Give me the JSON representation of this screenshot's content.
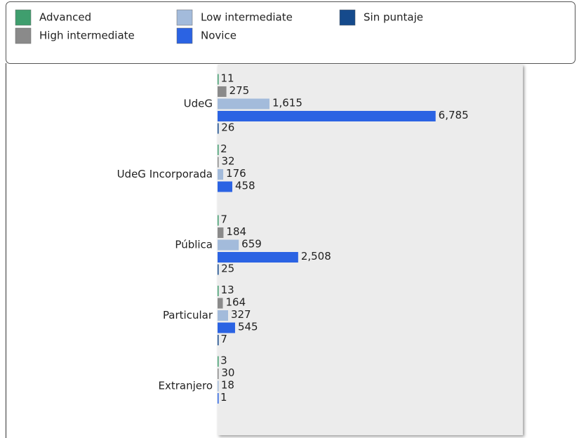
{
  "chart_data": {
    "type": "bar",
    "orientation": "horizontal",
    "categories": [
      "UdeG",
      "UdeG Incorporada",
      "Pública",
      "Particular",
      "Extranjero"
    ],
    "series": [
      {
        "name": "Advanced",
        "color": "#3f9e6e",
        "values": [
          11,
          2,
          7,
          13,
          3
        ]
      },
      {
        "name": "High intermediate",
        "color": "#8a8a8a",
        "values": [
          275,
          32,
          184,
          164,
          30
        ]
      },
      {
        "name": "Low intermediate",
        "color": "#a3bbdb",
        "values": [
          1615,
          176,
          659,
          327,
          18
        ],
        "value_labels": [
          "1,615",
          "176",
          "659",
          "327",
          "18"
        ]
      },
      {
        "name": "Novice",
        "color": "#2b63e3",
        "values": [
          6785,
          458,
          2508,
          545,
          1
        ],
        "value_labels": [
          "6,785",
          "458",
          "2,508",
          "545",
          "1"
        ]
      },
      {
        "name": "Sin puntaje",
        "color": "#154a8c",
        "values": [
          26,
          null,
          25,
          7,
          null
        ]
      }
    ],
    "xlim": [
      0,
      9500
    ],
    "legend": "top"
  }
}
